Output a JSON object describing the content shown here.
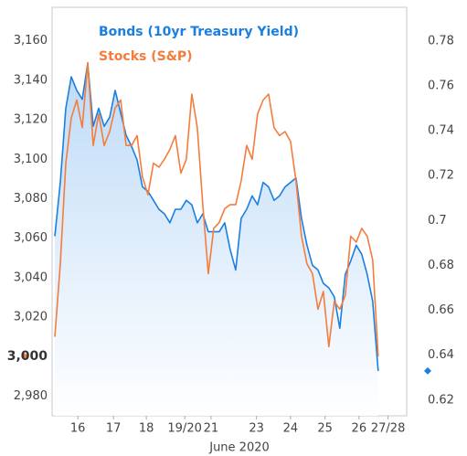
{
  "chart_data": {
    "type": "line",
    "xlabel": "June 2020",
    "x": [
      0,
      1,
      2,
      3,
      4,
      5,
      6,
      7,
      8,
      9,
      10,
      11,
      12,
      13,
      14,
      15,
      16,
      17,
      18,
      19,
      20,
      21,
      22,
      23,
      24,
      25,
      26,
      27,
      28,
      29,
      30,
      31,
      32,
      33,
      34,
      35,
      36,
      37,
      38,
      39,
      40,
      41,
      42,
      43,
      44,
      45,
      46,
      47,
      48,
      49,
      50,
      51,
      52,
      53,
      54,
      55,
      56,
      57,
      58,
      59
    ],
    "xlim": [
      -0.5,
      64.2
    ],
    "xticks": [
      {
        "value": 4.2,
        "label": "16"
      },
      {
        "value": 10.7,
        "label": "17"
      },
      {
        "value": 16.7,
        "label": "18"
      },
      {
        "value": 23.7,
        "label": "19/20"
      },
      {
        "value": 28.5,
        "label": "21"
      },
      {
        "value": 36.8,
        "label": "23"
      },
      {
        "value": 43,
        "label": "24"
      },
      {
        "value": 49.3,
        "label": "25"
      },
      {
        "value": 55.5,
        "label": "26"
      },
      {
        "value": 60.8,
        "label": "27/28"
      }
    ],
    "ylim": [
      2970,
      3177
    ],
    "yticks": [
      {
        "value": 2980,
        "label": "2,980"
      },
      {
        "value": 3020,
        "label": "3,020"
      },
      {
        "value": 3040,
        "label": "3,040"
      },
      {
        "value": 3060,
        "label": "3,060"
      },
      {
        "value": 3080,
        "label": "3,080"
      },
      {
        "value": 3100,
        "label": "3,100"
      },
      {
        "value": 3120,
        "label": "3,120"
      },
      {
        "value": 3140,
        "label": "3,140"
      },
      {
        "value": 3160,
        "label": "3,160"
      }
    ],
    "y2lim": [
      0.613,
      0.795
    ],
    "y2ticks": [
      0.62,
      0.64,
      0.66,
      0.68,
      0.7,
      0.72,
      0.74,
      0.76,
      0.78
    ],
    "grid": false,
    "series": [
      {
        "name": "Bonds (10yr Treasury Yield)",
        "color": "#1a7fe0",
        "axis": "y2",
        "area": true,
        "values": [
          0.693,
          0.717,
          0.75,
          0.764,
          0.758,
          0.754,
          0.77,
          0.742,
          0.75,
          0.742,
          0.746,
          0.758,
          0.748,
          0.738,
          0.733,
          0.727,
          0.715,
          0.713,
          0.709,
          0.705,
          0.703,
          0.699,
          0.705,
          0.705,
          0.709,
          0.707,
          0.699,
          0.703,
          0.695,
          0.695,
          0.695,
          0.699,
          0.687,
          0.678,
          0.701,
          0.705,
          0.711,
          0.707,
          0.717,
          0.715,
          0.709,
          0.711,
          0.715,
          0.717,
          0.719,
          0.701,
          0.689,
          0.68,
          0.678,
          0.672,
          0.67,
          0.666,
          0.652,
          0.676,
          0.682,
          0.689,
          0.685,
          0.676,
          0.664,
          0.633
        ]
      },
      {
        "name": "Stocks (S&P)",
        "color": "#f47c3c",
        "axis": "y",
        "area": false,
        "last_value_label": "3,000",
        "values": [
          3010,
          3047,
          3098,
          3121,
          3130,
          3116,
          3149,
          3107,
          3123,
          3107,
          3114,
          3126,
          3130,
          3107,
          3107,
          3112,
          3091,
          3082,
          3098,
          3096,
          3100,
          3105,
          3112,
          3093,
          3100,
          3133,
          3116,
          3077,
          3042,
          3065,
          3068,
          3075,
          3077,
          3077,
          3089,
          3107,
          3100,
          3123,
          3130,
          3133,
          3116,
          3112,
          3114,
          3109,
          3089,
          3061,
          3047,
          3042,
          3024,
          3033,
          3005,
          3028,
          3024,
          3031,
          3061,
          3058,
          3065,
          3061,
          3049,
          3000
        ]
      }
    ]
  }
}
